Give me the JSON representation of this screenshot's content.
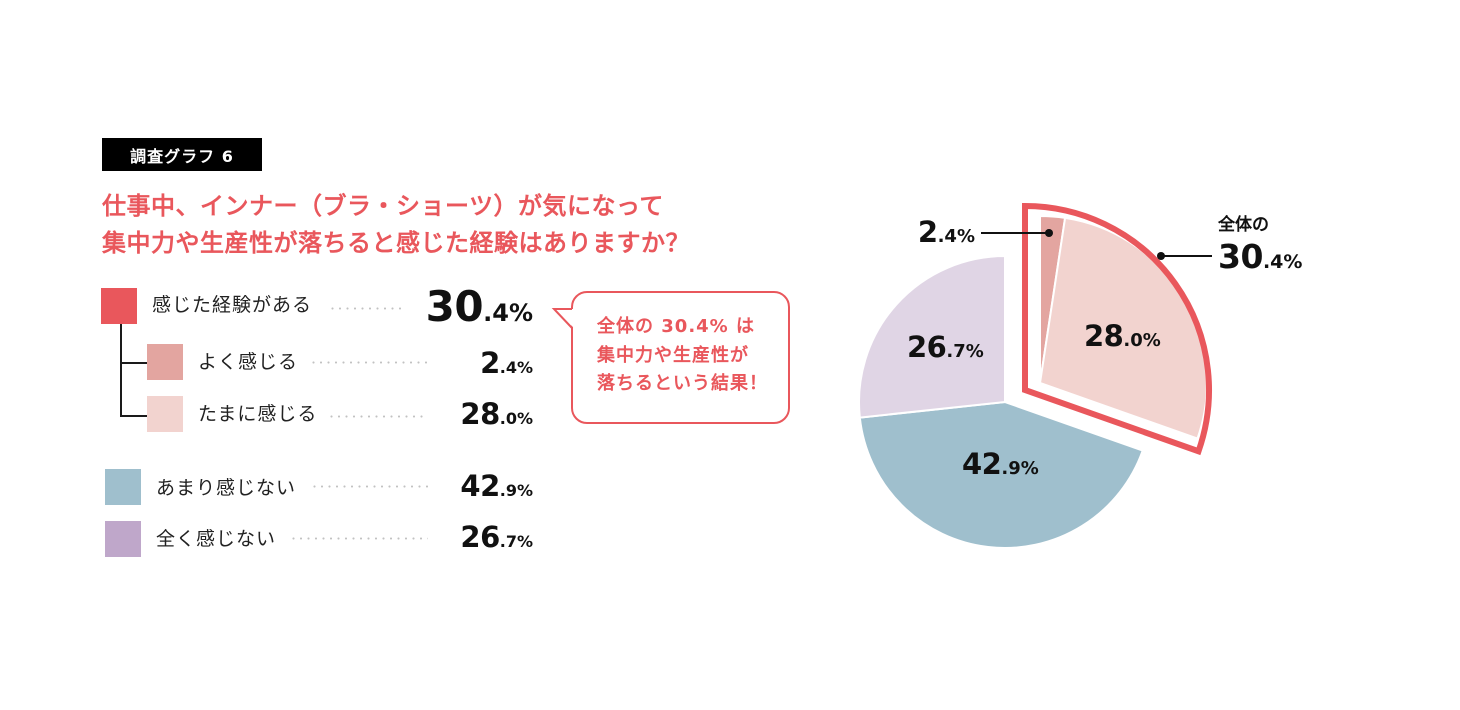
{
  "badge": {
    "label": "調査グラフ 6"
  },
  "headline": {
    "line1": "仕事中、インナー（ブラ・ショーツ）が気になって",
    "line2": "集中力や生産性が落ちると感じた経験はありますか？",
    "color": "#E9575C"
  },
  "legend": {
    "items": [
      {
        "label": "感じた経験がある",
        "value_int": "30",
        "value_dec": ".4%",
        "color": "#E9575C"
      },
      {
        "label": "よく感じる",
        "value_int": "2",
        "value_dec": ".4%",
        "color": "#E3A5A0"
      },
      {
        "label": "たまに感じる",
        "value_int": "28",
        "value_dec": ".0%",
        "color": "#F2D3CF"
      },
      {
        "label": "あまり感じない",
        "value_int": "42",
        "value_dec": ".9%",
        "color": "#9FBFCD"
      },
      {
        "label": "全く感じない",
        "value_int": "26",
        "value_dec": ".7%",
        "color": "#BFA7CA"
      }
    ]
  },
  "callout": {
    "line1": "全体の 30.4% は",
    "line2": "集中力や生産性が",
    "line3": "落ちるという結果！",
    "color": "#E9575C"
  },
  "pie": {
    "labels": [
      {
        "value_int": "2",
        "value_dec": ".4%"
      },
      {
        "value_int": "28",
        "value_dec": ".0%"
      },
      {
        "value_int": "42",
        "value_dec": ".9%"
      },
      {
        "value_int": "26",
        "value_dec": ".7%"
      }
    ],
    "highlight": {
      "caption": "全体の",
      "value_int": "30",
      "value_dec": ".4%"
    }
  },
  "chart_data": {
    "type": "pie",
    "title": "仕事中、インナー（ブラ・ショーツ）が気になって集中力や生産性が落ちると感じた経験はありますか？",
    "subtitle": "調査グラフ 6",
    "categories": [
      "よく感じる",
      "たまに感じる",
      "あまり感じない",
      "全く感じない"
    ],
    "values": [
      2.4,
      28.0,
      42.9,
      26.7
    ],
    "unit": "%",
    "slice_colors": [
      "#E3A5A0",
      "#F2D3CF",
      "#9FBFCD",
      "#E0D5E5"
    ],
    "legend_colors": [
      "#E3A5A0",
      "#F2D3CF",
      "#9FBFCD",
      "#BFA7CA"
    ],
    "exploded": [
      true,
      true,
      false,
      false
    ],
    "group": {
      "label": "感じた経験がある",
      "members": [
        "よく感じる",
        "たまに感じる"
      ],
      "value": 30.4
    },
    "highlight_color": "#E9575C",
    "annotations": [
      "全体の 30.4%",
      "全体の 30.4% は集中力や生産性が落ちるという結果！"
    ],
    "start_angle": "12 o'clock, clockwise",
    "legend_position": "left"
  }
}
